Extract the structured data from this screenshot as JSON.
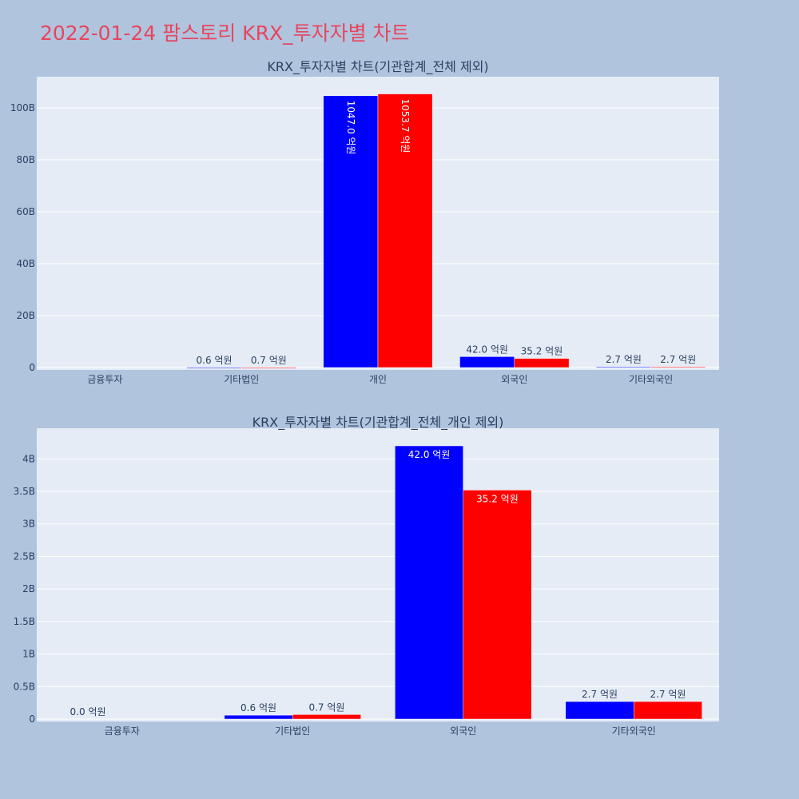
{
  "page": {
    "title": "2022-01-24 팜스토리 KRX_투자자별 차트"
  },
  "chart_data": [
    {
      "type": "bar",
      "title": "KRX_투자자별 차트(기관합계_전체 제외)",
      "categories": [
        "금융투자",
        "기타법인",
        "개인",
        "외국인",
        "기타외국인"
      ],
      "series": [
        {
          "color": "#0000ff",
          "values": [
            0,
            60000000,
            104700000000,
            4200000000,
            270000000
          ],
          "labels": [
            "",
            "0.6 억원",
            "1047.0 억원",
            "42.0 억원",
            "2.7 억원"
          ]
        },
        {
          "color": "#ff0000",
          "values": [
            0,
            70000000,
            105370000000,
            3520000000,
            270000000
          ],
          "labels": [
            "",
            "0.7 억원",
            "1053.7 억원",
            "35.2 억원",
            "2.7 억원"
          ]
        }
      ],
      "yticks": [
        0,
        20000000000,
        40000000000,
        60000000000,
        80000000000,
        100000000000
      ],
      "ytick_labels": [
        "0",
        "20B",
        "40B",
        "60B",
        "80B",
        "100B"
      ],
      "ylim": [
        0,
        112000000000
      ],
      "grid": true,
      "legend": "none"
    },
    {
      "type": "bar",
      "title": "KRX_투자자별 차트(기관합계_전체_개인 제외)",
      "categories": [
        "금융투자",
        "기타법인",
        "외국인",
        "기타외국인"
      ],
      "series": [
        {
          "color": "#0000ff",
          "values": [
            0,
            60000000,
            4200000000,
            270000000
          ],
          "labels": [
            "0.0 억원",
            "0.6 억원",
            "42.0 억원",
            "2.7 억원"
          ]
        },
        {
          "color": "#ff0000",
          "values": [
            0,
            70000000,
            3520000000,
            270000000
          ],
          "labels": [
            "",
            "0.7 억원",
            "35.2 억원",
            "2.7 억원"
          ]
        }
      ],
      "yticks": [
        0,
        500000000,
        1000000000,
        1500000000,
        2000000000,
        2500000000,
        3000000000,
        3500000000,
        4000000000
      ],
      "ytick_labels": [
        "0",
        "0.5B",
        "1B",
        "1.5B",
        "2B",
        "2.5B",
        "3B",
        "3.5B",
        "4B"
      ],
      "ylim": [
        0,
        4470000000
      ],
      "grid": true,
      "legend": "none"
    }
  ]
}
